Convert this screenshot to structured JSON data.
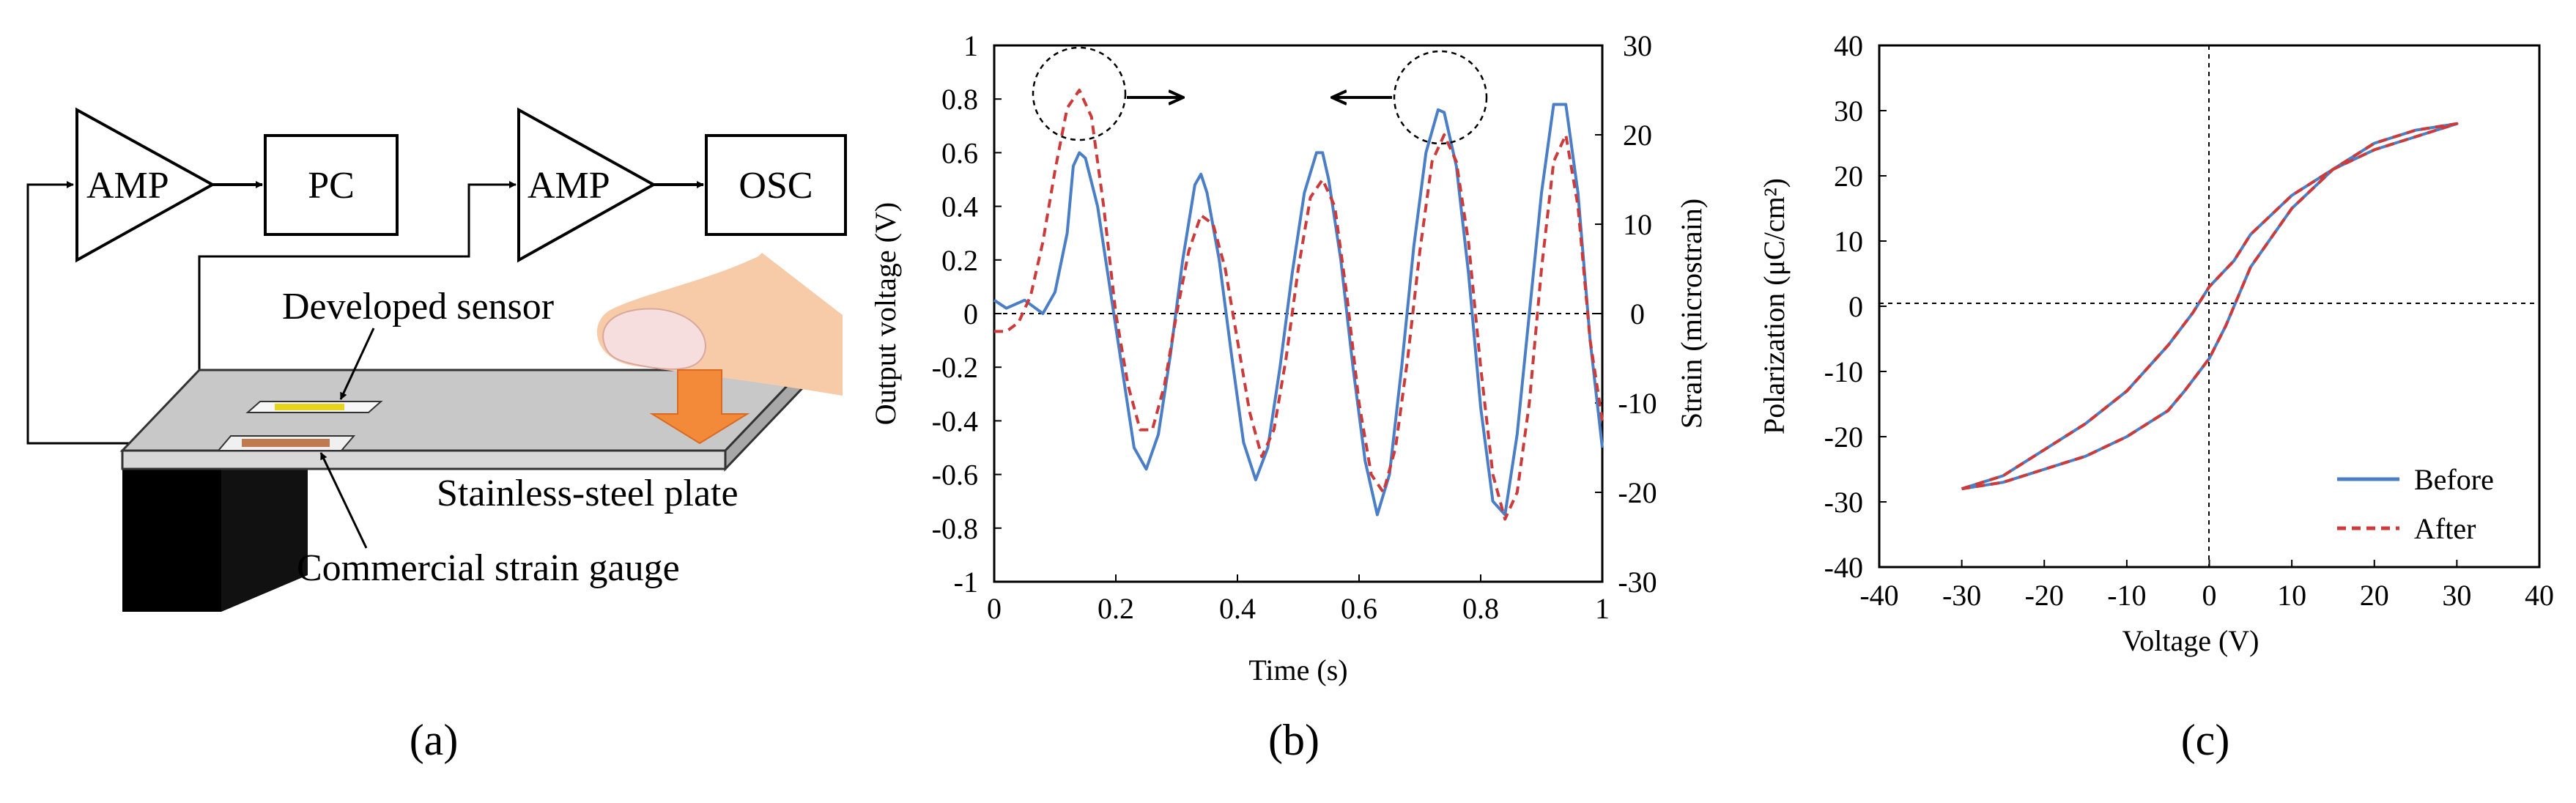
{
  "panel_a": {
    "caption": "(a)",
    "amp1_label": "AMP",
    "pc_label": "PC",
    "amp2_label": "AMP",
    "osc_label": "OSC",
    "developed_sensor_label": "Developed sensor",
    "plate_label": "Stainless-steel plate",
    "gauge_label": "Commercial strain gauge"
  },
  "panel_b": {
    "caption": "(b)"
  },
  "panel_c": {
    "caption": "(c)"
  },
  "colors": {
    "before": "#4a7ec6",
    "after": "#cc3a3a",
    "arrow_fill": "#f28a3a",
    "finger": "#f8cba8"
  },
  "chart_data": [
    {
      "type": "line",
      "title": "",
      "xlabel": "Time (s)",
      "ylabel": "Output voltage (V)",
      "y2label": "Strain (microstrain)",
      "xlim": [
        0,
        1
      ],
      "ylim": [
        -1,
        1
      ],
      "y2lim": [
        -30,
        30
      ],
      "xticks": [
        "0",
        "0.2",
        "0.4",
        "0.6",
        "0.8",
        "1"
      ],
      "yticks": [
        "1",
        "0.8",
        "0.6",
        "0.4",
        "0.2",
        "0",
        "-0.2",
        "-0.4",
        "-0.6",
        "-0.8",
        "-1"
      ],
      "y2ticks": [
        "30",
        "20",
        "10",
        "0",
        "-10",
        "-20",
        "-30"
      ],
      "grid": false,
      "annotations": [
        "circle near first peak with arrow pointing right (to strain axis)",
        "circle near fourth peak with arrow pointing left (to voltage axis)"
      ],
      "series": [
        {
          "name": "Output voltage",
          "axis": "left",
          "style": "solid",
          "x": [
            0.0,
            0.02,
            0.05,
            0.08,
            0.1,
            0.12,
            0.13,
            0.14,
            0.15,
            0.17,
            0.19,
            0.21,
            0.23,
            0.25,
            0.27,
            0.29,
            0.31,
            0.33,
            0.34,
            0.35,
            0.37,
            0.39,
            0.41,
            0.43,
            0.45,
            0.47,
            0.49,
            0.51,
            0.53,
            0.54,
            0.55,
            0.57,
            0.59,
            0.61,
            0.63,
            0.65,
            0.67,
            0.69,
            0.71,
            0.73,
            0.74,
            0.76,
            0.78,
            0.8,
            0.82,
            0.84,
            0.86,
            0.88,
            0.9,
            0.92,
            0.94,
            0.96,
            0.98,
            1.0
          ],
          "values": [
            0.05,
            0.02,
            0.05,
            0.0,
            0.08,
            0.3,
            0.55,
            0.6,
            0.58,
            0.4,
            0.1,
            -0.2,
            -0.5,
            -0.58,
            -0.45,
            -0.15,
            0.2,
            0.48,
            0.52,
            0.45,
            0.2,
            -0.15,
            -0.48,
            -0.62,
            -0.5,
            -0.2,
            0.15,
            0.45,
            0.6,
            0.6,
            0.5,
            0.2,
            -0.2,
            -0.55,
            -0.75,
            -0.6,
            -0.2,
            0.25,
            0.6,
            0.76,
            0.75,
            0.55,
            0.15,
            -0.35,
            -0.7,
            -0.75,
            -0.45,
            0.0,
            0.45,
            0.78,
            0.78,
            0.45,
            -0.1,
            -0.5
          ]
        },
        {
          "name": "Strain",
          "axis": "right",
          "style": "dashed",
          "x": [
            0.0,
            0.02,
            0.04,
            0.06,
            0.08,
            0.1,
            0.12,
            0.14,
            0.16,
            0.18,
            0.2,
            0.22,
            0.24,
            0.26,
            0.28,
            0.3,
            0.32,
            0.34,
            0.36,
            0.38,
            0.4,
            0.42,
            0.44,
            0.46,
            0.48,
            0.5,
            0.52,
            0.54,
            0.56,
            0.58,
            0.6,
            0.62,
            0.64,
            0.66,
            0.68,
            0.7,
            0.72,
            0.74,
            0.76,
            0.78,
            0.8,
            0.82,
            0.84,
            0.86,
            0.88,
            0.9,
            0.92,
            0.94,
            0.96,
            0.98,
            1.0
          ],
          "values": [
            -2,
            -2,
            -1,
            2,
            8,
            16,
            23,
            25,
            22,
            12,
            0,
            -8,
            -13,
            -13,
            -8,
            0,
            7,
            11,
            10,
            5,
            -3,
            -11,
            -16,
            -13,
            -5,
            5,
            13,
            15,
            12,
            2,
            -10,
            -18,
            -20,
            -15,
            -5,
            7,
            17,
            20,
            17,
            8,
            -6,
            -18,
            -23,
            -20,
            -10,
            5,
            17,
            20,
            12,
            -3,
            -12
          ]
        }
      ]
    },
    {
      "type": "line",
      "title": "",
      "xlabel": "Voltage (V)",
      "ylabel": "Polarization (μC/cm²)",
      "xlim": [
        -40,
        40
      ],
      "ylim": [
        -40,
        40
      ],
      "xticks": [
        "-40",
        "-30",
        "-20",
        "-10",
        "0",
        "10",
        "20",
        "30",
        "40"
      ],
      "yticks": [
        "40",
        "30",
        "20",
        "10",
        "0",
        "-10",
        "-20",
        "-30",
        "-40"
      ],
      "grid": false,
      "legend": "bottom-right",
      "series": [
        {
          "name": "Before",
          "style": "solid",
          "x": [
            -30,
            -25,
            -20,
            -15,
            -10,
            -5,
            -2,
            0,
            3,
            5,
            10,
            15,
            20,
            25,
            30,
            25,
            20,
            15,
            10,
            5,
            2,
            0,
            -3,
            -5,
            -10,
            -15,
            -20,
            -25,
            -30
          ],
          "values": [
            -28,
            -26,
            -22,
            -18,
            -13,
            -6,
            -1,
            3,
            7,
            11,
            17,
            21,
            24,
            26,
            28,
            27,
            25,
            21,
            15,
            6,
            -3,
            -8,
            -13,
            -16,
            -20,
            -23,
            -25,
            -27,
            -28
          ]
        },
        {
          "name": "After",
          "style": "dashed",
          "x": [
            -30,
            -25,
            -20,
            -15,
            -10,
            -5,
            -2,
            0,
            3,
            5,
            10,
            15,
            20,
            25,
            30,
            25,
            20,
            15,
            10,
            5,
            2,
            0,
            -3,
            -5,
            -10,
            -15,
            -20,
            -25,
            -30
          ],
          "values": [
            -28,
            -26,
            -22,
            -18,
            -13,
            -6,
            -1,
            3,
            7,
            11,
            17,
            21,
            24,
            26,
            28,
            27,
            25,
            21,
            15,
            6,
            -3,
            -8,
            -13,
            -16,
            -20,
            -23,
            -25,
            -27,
            -28
          ]
        }
      ]
    }
  ]
}
